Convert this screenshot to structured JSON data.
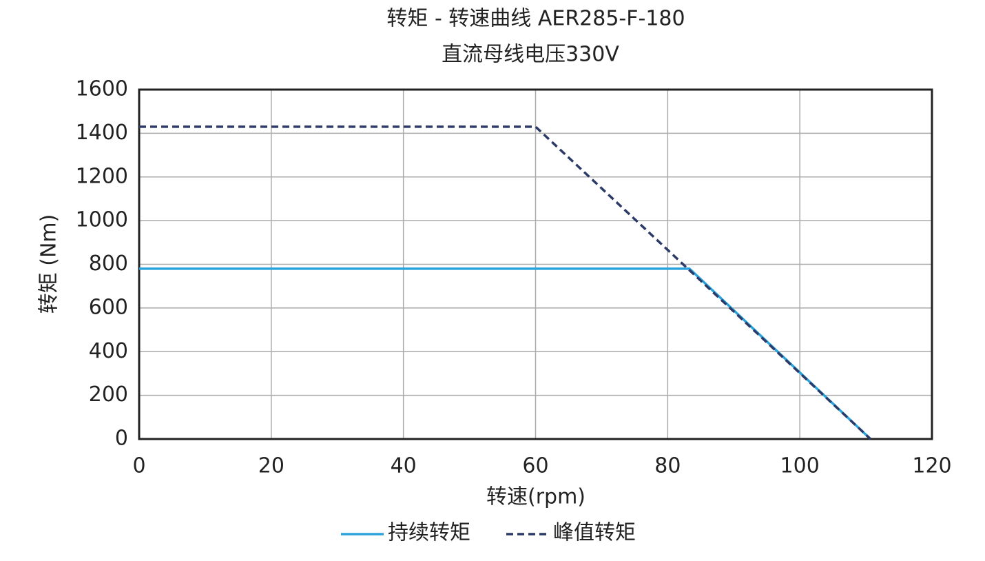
{
  "chart_data": {
    "type": "line",
    "title": "转矩 - 转速曲线 AER285-F-180",
    "subtitle": "直流母线电压330V",
    "x_label": "转速(rpm)",
    "y_label": "转矩 (Nm)",
    "xlim": [
      0,
      120
    ],
    "xticks": [
      0,
      20,
      40,
      60,
      80,
      100,
      120
    ],
    "ylim": [
      0,
      1600
    ],
    "yticks": [
      0,
      200,
      400,
      600,
      800,
      1000,
      1200,
      1400,
      1600
    ],
    "grid": true,
    "legend": "bottom",
    "series": [
      {
        "name": "持续转矩",
        "color": "#2aa3dc",
        "line_style": "solid",
        "x": [
          0,
          83.3,
          110.7
        ],
        "values": [
          780,
          780,
          0
        ]
      },
      {
        "name": "峰值转矩",
        "color": "#2b3a67",
        "line_style": "dashed",
        "x": [
          0,
          60,
          110.7
        ],
        "values": [
          1430,
          1430,
          0
        ]
      }
    ]
  }
}
